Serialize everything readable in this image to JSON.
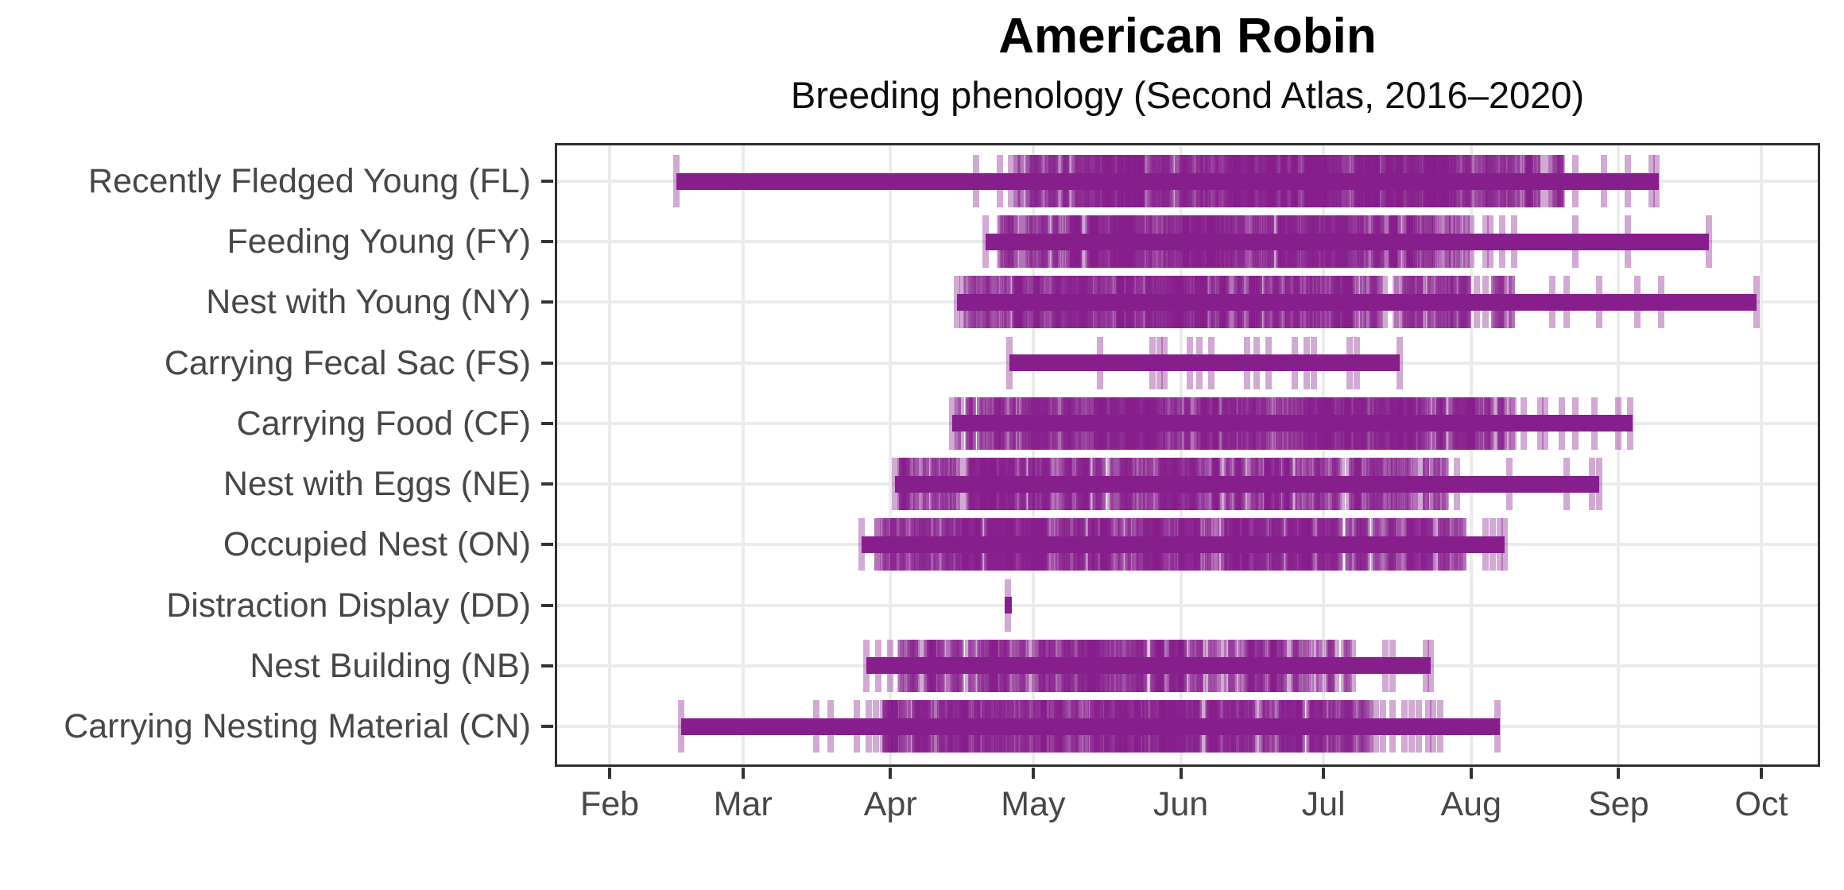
{
  "title": "American Robin",
  "subtitle": "Breeding phenology (Second Atlas, 2016–2020)",
  "colors": {
    "bar": "#861e8c",
    "tick_rgb": "134,30,140",
    "tick_alpha": 0.38,
    "grid": "#ebebeb",
    "panel_border": "#2e2e2e",
    "axis_text": "#474747",
    "title_text": "#000000"
  },
  "chart_data": {
    "type": "phenology-rug",
    "title": "American Robin",
    "subtitle": "Breeding phenology (Second Atlas, 2016–2020)",
    "xlabel": "",
    "ylabel": "",
    "grid": "major-only",
    "x_axis": {
      "unit": "day offset from Feb 1",
      "tick_labels": [
        "Feb",
        "Mar",
        "Apr",
        "May",
        "Jun",
        "Jul",
        "Aug",
        "Sep",
        "Oct"
      ],
      "tick_day_offsets": [
        0,
        28,
        59,
        89,
        120,
        150,
        181,
        212,
        242
      ],
      "domain_days": [
        -11.5,
        254
      ]
    },
    "categories": [
      {
        "label": "Recently Fledged Young (FL)",
        "code": "FL",
        "range_days": [
          14,
          220.4
        ],
        "range_dates": "Feb 15 – Sep 9",
        "tick_days": [
          14,
          77,
          82,
          203,
          209,
          214,
          219,
          220
        ],
        "clusters": [
          {
            "from": 84,
            "to": 89,
            "count": 10
          },
          {
            "from": 89,
            "to": 104,
            "count": 55
          },
          {
            "from": 104,
            "to": 150,
            "count": 250
          },
          {
            "from": 150,
            "to": 181,
            "count": 170
          },
          {
            "from": 181,
            "to": 195,
            "count": 50
          },
          {
            "from": 195,
            "to": 202,
            "count": 12
          }
        ]
      },
      {
        "label": "Feeding Young (FY)",
        "code": "FY",
        "range_days": [
          79,
          231
        ],
        "range_dates": "Apr 21 – Sep 20",
        "tick_days": [
          79,
          181,
          184,
          185,
          187.5,
          190,
          203,
          214,
          231
        ],
        "clusters": [
          {
            "from": 80,
            "to": 88,
            "count": 16
          },
          {
            "from": 88,
            "to": 100,
            "count": 45
          },
          {
            "from": 100,
            "to": 150,
            "count": 240
          },
          {
            "from": 150,
            "to": 170,
            "count": 90
          },
          {
            "from": 170,
            "to": 180,
            "count": 25
          }
        ]
      },
      {
        "label": "Nest with Young (NY)",
        "code": "NY",
        "range_days": [
          73,
          241
        ],
        "range_dates": "Apr 15 – Sep 30",
        "tick_days": [
          73,
          198,
          201,
          208,
          216,
          221,
          241
        ],
        "clusters": [
          {
            "from": 74,
            "to": 85,
            "count": 28
          },
          {
            "from": 85,
            "to": 135,
            "count": 230
          },
          {
            "from": 135,
            "to": 160,
            "count": 100
          },
          {
            "from": 160,
            "to": 182,
            "count": 60
          },
          {
            "from": 182,
            "to": 190,
            "count": 14
          }
        ]
      },
      {
        "label": "Carrying Fecal Sac (FS)",
        "code": "FS",
        "range_days": [
          84,
          166
        ],
        "range_dates": "Apr 26 – Jul 17",
        "tick_days": [
          84,
          103,
          114,
          115.5,
          116.5,
          122,
          124,
          126.5,
          134,
          136,
          138.5,
          144,
          146.5,
          148,
          155.5,
          157,
          166
        ],
        "clusters": []
      },
      {
        "label": "Carrying Food (CF)",
        "code": "CF",
        "range_days": [
          72,
          215
        ],
        "range_dates": "Apr 14 – Sep 4",
        "tick_days": [
          72,
          192,
          195.5,
          196.5,
          200,
          203,
          207,
          212,
          214.5
        ],
        "clusters": [
          {
            "from": 73,
            "to": 85,
            "count": 36
          },
          {
            "from": 85,
            "to": 150,
            "count": 300
          },
          {
            "from": 150,
            "to": 170,
            "count": 110
          },
          {
            "from": 170,
            "to": 183,
            "count": 55
          },
          {
            "from": 183,
            "to": 190,
            "count": 18
          }
        ]
      },
      {
        "label": "Nest with Eggs (NE)",
        "code": "NE",
        "range_days": [
          60,
          208
        ],
        "range_dates": "Apr 2 – Aug 28",
        "tick_days": [
          60,
          178,
          189,
          201,
          206.5,
          208
        ],
        "clusters": [
          {
            "from": 61,
            "to": 75,
            "count": 40
          },
          {
            "from": 75,
            "to": 120,
            "count": 200
          },
          {
            "from": 120,
            "to": 150,
            "count": 110
          },
          {
            "from": 150,
            "to": 168,
            "count": 55
          },
          {
            "from": 168,
            "to": 176,
            "count": 16
          }
        ]
      },
      {
        "label": "Occupied Nest (ON)",
        "code": "ON",
        "range_days": [
          53,
          188
        ],
        "range_dates": "Mar 26 – Aug 8",
        "tick_days": [
          53,
          184,
          185.5,
          187,
          188
        ],
        "clusters": [
          {
            "from": 56,
            "to": 70,
            "count": 45
          },
          {
            "from": 70,
            "to": 130,
            "count": 280
          },
          {
            "from": 130,
            "to": 155,
            "count": 120
          },
          {
            "from": 155,
            "to": 172,
            "count": 60
          },
          {
            "from": 172,
            "to": 180,
            "count": 22
          }
        ]
      },
      {
        "label": "Distraction Display (DD)",
        "code": "DD",
        "range_days": [
          83,
          84.5
        ],
        "range_dates": "Apr 25",
        "tick_days": [
          83.7
        ],
        "clusters": []
      },
      {
        "label": "Nest Building (NB)",
        "code": "NB",
        "range_days": [
          54,
          172.5
        ],
        "range_dates": "Mar 27 – Jul 23",
        "tick_days": [
          54,
          56.5,
          59,
          163,
          164.5,
          171.5,
          172.5
        ],
        "clusters": [
          {
            "from": 61,
            "to": 80,
            "count": 55
          },
          {
            "from": 80,
            "to": 125,
            "count": 180
          },
          {
            "from": 125,
            "to": 145,
            "count": 60
          },
          {
            "from": 145,
            "to": 152,
            "count": 14
          },
          {
            "from": 152,
            "to": 157,
            "count": 6
          }
        ]
      },
      {
        "label": "Carrying Nesting Material (CN)",
        "code": "CN",
        "range_days": [
          15,
          187
        ],
        "range_dates": "Feb 16 – Aug 7",
        "tick_days": [
          15,
          43.5,
          46.5,
          52,
          54.5,
          56,
          57.5,
          161,
          162.5,
          164.5,
          167,
          168.5,
          170,
          172,
          173,
          174.5,
          186.5
        ],
        "clusters": [
          {
            "from": 58,
            "to": 70,
            "count": 55
          },
          {
            "from": 70,
            "to": 135,
            "count": 300
          },
          {
            "from": 135,
            "to": 158,
            "count": 85
          },
          {
            "from": 158,
            "to": 160,
            "count": 6
          }
        ]
      }
    ]
  }
}
